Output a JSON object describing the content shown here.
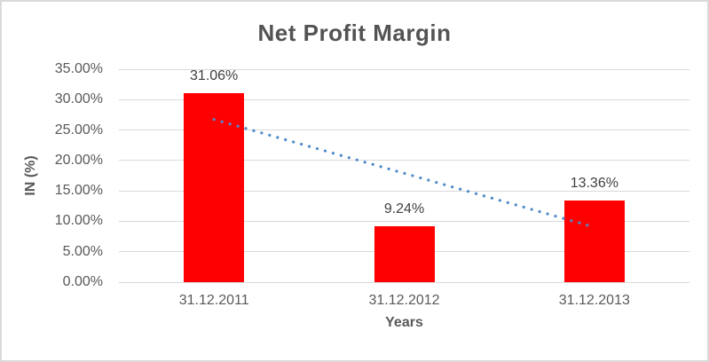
{
  "chart_data": {
    "type": "bar",
    "title": "Net Profit Margin",
    "xlabel": "Years",
    "ylabel": "IN (%)",
    "categories": [
      "31.12.2011",
      "31.12.2012",
      "31.12.2013"
    ],
    "values": [
      31.06,
      9.24,
      13.36
    ],
    "data_labels": [
      "31.06%",
      "9.24%",
      "13.36%"
    ],
    "yticks": [
      0,
      5,
      10,
      15,
      20,
      25,
      30,
      35
    ],
    "ytick_labels": [
      "0.00%",
      "5.00%",
      "10.00%",
      "15.00%",
      "20.00%",
      "25.00%",
      "30.00%",
      "35.00%"
    ],
    "ylim": [
      0,
      35
    ],
    "grid": true,
    "legend": "none",
    "bar_color": "#ff0000",
    "gridline_color": "#d9d9d9",
    "text_color": "#595959",
    "data_label_color": "#404040",
    "title_color": "#535353",
    "border_color": "#d9d9d9",
    "trendline": {
      "type": "linear",
      "style": "dotted",
      "color": "#4e8bc8",
      "start_value": 26.74,
      "end_value": 9.04,
      "start_category_index": 0,
      "end_category_index": 2
    }
  }
}
